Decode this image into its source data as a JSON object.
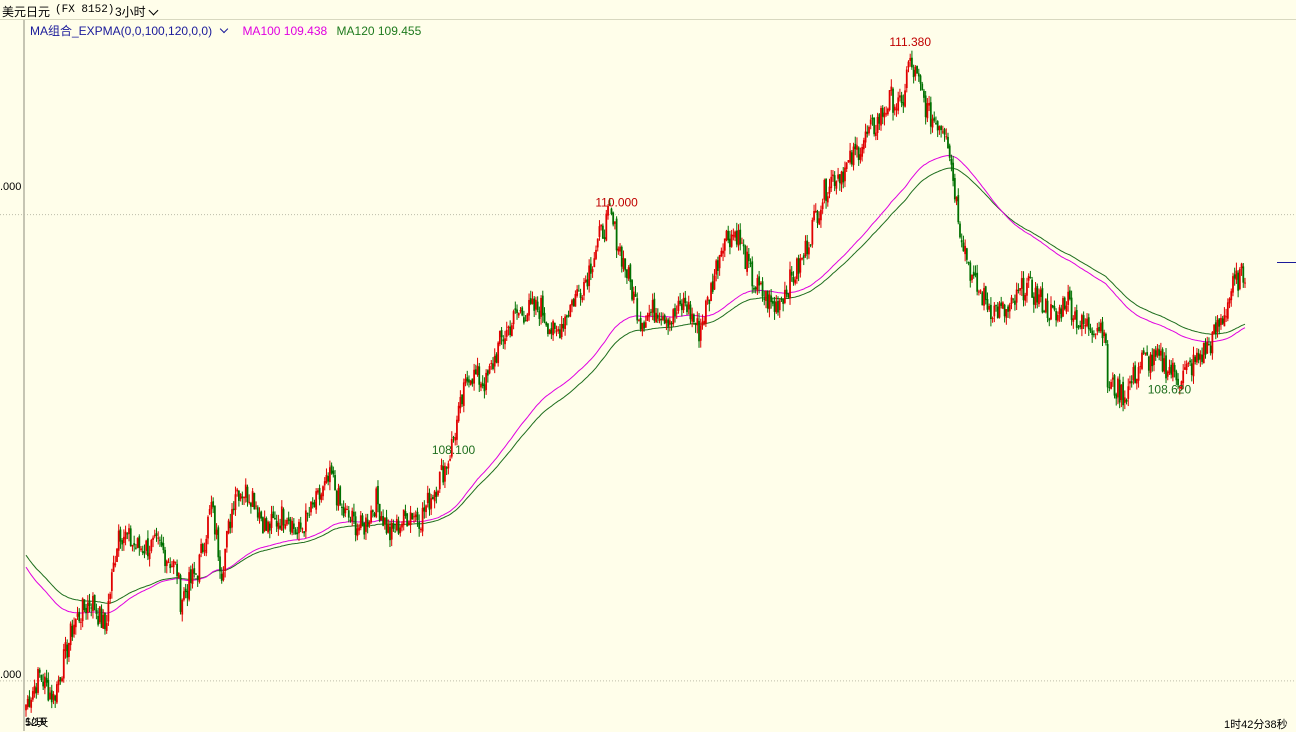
{
  "header": {
    "symbol": "美元日元",
    "code": "(FX 8152)",
    "period": "3小时"
  },
  "legend": {
    "indicator": "MA组合_EXPMA(0,0,100,120,0,0)",
    "ma100_label": "MA100 109.438",
    "ma120_label": "MA120 109.455"
  },
  "colors": {
    "up": "#e00000",
    "down": "#007000",
    "ma100": "#e000e0",
    "ma120": "#1e6e1e",
    "background": "#fffeea"
  },
  "axes": {
    "y_tick_upper": ".000",
    "y_tick_lower": ".000",
    "x_left_label": "52天",
    "x_left_label_under": "1/10",
    "countdown": "1时42分38秒"
  },
  "chart_data": {
    "type": "candlestick",
    "ylim": [
      105.57,
      111.67
    ],
    "gridlines": [
      110.0,
      106.0
    ],
    "annotations": [
      {
        "label": "111.380",
        "value": 111.38,
        "kind": "high"
      },
      {
        "label": "110.000",
        "value": 110.0,
        "kind": "high"
      },
      {
        "label": "108.620",
        "value": 108.62,
        "kind": "low"
      },
      {
        "label": "108.100",
        "value": 108.1,
        "kind": "low"
      }
    ],
    "price_path": [
      [
        0,
        105.8
      ],
      [
        8,
        106.05
      ],
      [
        16,
        105.85
      ],
      [
        28,
        106.5
      ],
      [
        38,
        106.7
      ],
      [
        46,
        106.45
      ],
      [
        54,
        107.3
      ],
      [
        64,
        107.15
      ],
      [
        78,
        107.15
      ],
      [
        88,
        106.95
      ],
      [
        90,
        106.7
      ],
      [
        100,
        106.95
      ],
      [
        108,
        107.5
      ],
      [
        114,
        106.95
      ],
      [
        122,
        107.65
      ],
      [
        132,
        107.6
      ],
      [
        140,
        107.3
      ],
      [
        152,
        107.45
      ],
      [
        158,
        107.25
      ],
      [
        170,
        107.55
      ],
      [
        178,
        107.75
      ],
      [
        184,
        107.45
      ],
      [
        196,
        107.3
      ],
      [
        204,
        107.55
      ],
      [
        212,
        107.25
      ],
      [
        224,
        107.45
      ],
      [
        230,
        107.4
      ],
      [
        238,
        107.65
      ],
      [
        246,
        107.9
      ],
      [
        258,
        108.65
      ],
      [
        268,
        108.55
      ],
      [
        276,
        108.9
      ],
      [
        286,
        109.15
      ],
      [
        300,
        109.2
      ],
      [
        308,
        108.95
      ],
      [
        318,
        109.25
      ],
      [
        326,
        109.45
      ],
      [
        334,
        109.8
      ],
      [
        340,
        110.0
      ],
      [
        350,
        109.5
      ],
      [
        358,
        109.1
      ],
      [
        368,
        109.2
      ],
      [
        376,
        109.1
      ],
      [
        384,
        109.25
      ],
      [
        392,
        109.0
      ],
      [
        398,
        109.3
      ],
      [
        406,
        109.8
      ],
      [
        414,
        109.85
      ],
      [
        424,
        109.4
      ],
      [
        436,
        109.2
      ],
      [
        452,
        109.6
      ],
      [
        460,
        110.0
      ],
      [
        468,
        110.3
      ],
      [
        478,
        110.4
      ],
      [
        486,
        110.6
      ],
      [
        494,
        110.75
      ],
      [
        504,
        111.0
      ],
      [
        510,
        110.9
      ],
      [
        514,
        111.3
      ],
      [
        518,
        111.2
      ],
      [
        526,
        110.85
      ],
      [
        536,
        110.75
      ],
      [
        544,
        109.9
      ],
      [
        552,
        109.4
      ],
      [
        562,
        109.2
      ],
      [
        572,
        109.15
      ],
      [
        582,
        109.4
      ],
      [
        592,
        109.25
      ],
      [
        600,
        109.1
      ],
      [
        606,
        109.3
      ],
      [
        614,
        109.05
      ],
      [
        628,
        109.05
      ],
      [
        630,
        108.55
      ],
      [
        640,
        108.45
      ],
      [
        650,
        108.75
      ],
      [
        660,
        108.75
      ],
      [
        672,
        108.6
      ],
      [
        682,
        108.75
      ],
      [
        690,
        108.9
      ],
      [
        698,
        109.15
      ],
      [
        702,
        109.35
      ],
      [
        706,
        109.45
      ],
      [
        710,
        109.5
      ]
    ]
  }
}
